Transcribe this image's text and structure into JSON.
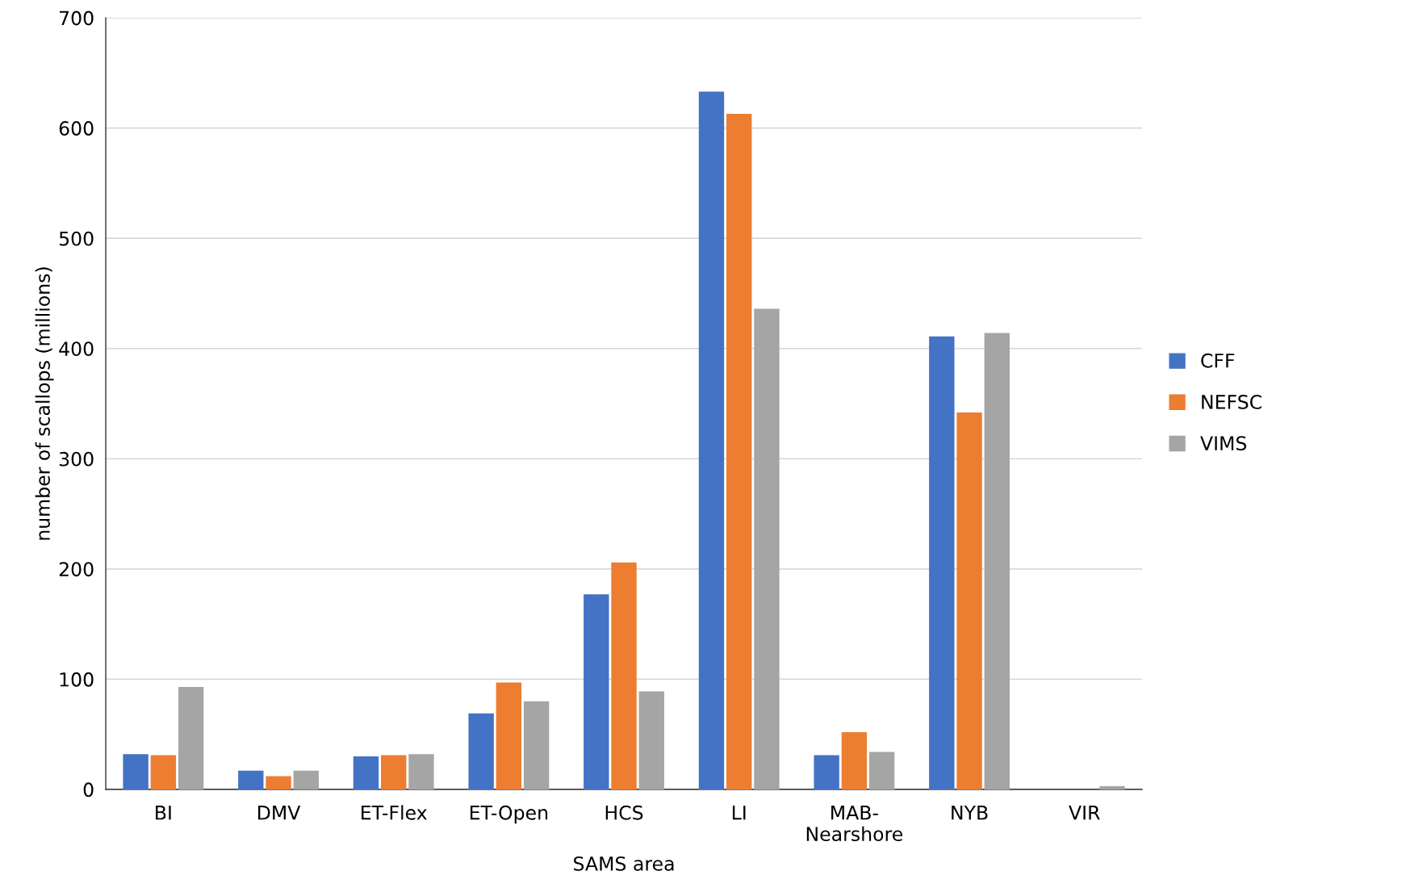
{
  "chart_data": {
    "type": "bar",
    "xlabel": "SAMS area",
    "ylabel": "number of scallops (millions)",
    "categories": [
      "BI",
      "DMV",
      "ET-Flex",
      "ET-Open",
      "HCS",
      "LI",
      "MAB-\nNearshore",
      "NYB",
      "VIR"
    ],
    "series": [
      {
        "name": "CFF",
        "color": "#4472c4",
        "values": [
          32,
          17,
          30,
          69,
          177,
          633,
          31,
          411,
          0
        ]
      },
      {
        "name": "NEFSC",
        "color": "#ed7d31",
        "values": [
          31,
          12,
          31,
          97,
          206,
          613,
          52,
          342,
          0
        ]
      },
      {
        "name": "VIMS",
        "color": "#a5a5a5",
        "values": [
          93,
          17,
          32,
          80,
          89,
          436,
          34,
          414,
          3
        ]
      }
    ],
    "ylim": [
      0,
      700
    ],
    "yticks": [
      0,
      100,
      200,
      300,
      400,
      500,
      600,
      700
    ],
    "grid": "y",
    "legend": "right"
  }
}
